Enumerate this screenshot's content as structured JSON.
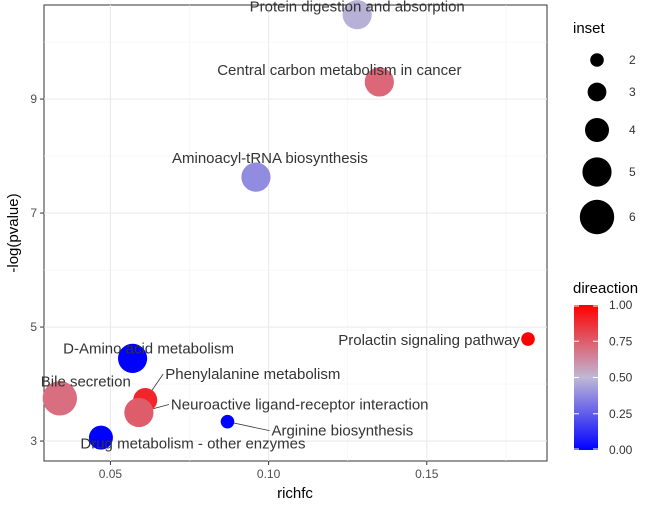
{
  "chart_data": {
    "type": "scatter",
    "title": "",
    "xlabel": "richfc",
    "ylabel": "-log(pvalue)",
    "xlim": [
      0.029,
      0.188
    ],
    "ylim": [
      2.65,
      10.65
    ],
    "xticks": [
      0.05,
      0.1,
      0.15
    ],
    "xtick_labels": [
      "0.05",
      "0.10",
      "0.15"
    ],
    "yticks": [
      3,
      5,
      7,
      9
    ],
    "ytick_labels": [
      "3",
      "5",
      "7",
      "9"
    ],
    "grid": true,
    "points": [
      {
        "label": "Protein digestion and absorption",
        "x": 0.128,
        "y": 10.48,
        "inset": 5,
        "direaction": 0.48
      },
      {
        "label": "Central carbon metabolism in cancer",
        "x": 0.135,
        "y": 9.3,
        "inset": 5,
        "direaction": 0.72
      },
      {
        "label": "Aminoacyl-tRNA biosynthesis",
        "x": 0.096,
        "y": 7.63,
        "inset": 5,
        "direaction": 0.38
      },
      {
        "label": "Prolactin signaling pathway",
        "x": 0.182,
        "y": 4.79,
        "inset": 2,
        "direaction": 1.0
      },
      {
        "label": "D-Amino acid metabolism",
        "x": 0.057,
        "y": 4.45,
        "inset": 5,
        "direaction": 0.0
      },
      {
        "label": "Phenylalanine metabolism",
        "x": 0.061,
        "y": 3.72,
        "inset": 4,
        "direaction": 0.9
      },
      {
        "label": "Bile secretion",
        "x": 0.034,
        "y": 3.75,
        "inset": 6,
        "direaction": 0.7
      },
      {
        "label": "Neuroactive ligand-receptor interaction",
        "x": 0.059,
        "y": 3.5,
        "inset": 5,
        "direaction": 0.75
      },
      {
        "label": "Arginine biosynthesis",
        "x": 0.087,
        "y": 3.34,
        "inset": 2,
        "direaction": 0.0
      },
      {
        "label": "Drug metabolism - other enzymes",
        "x": 0.047,
        "y": 3.06,
        "inset": 4,
        "direaction": 0.0
      }
    ],
    "legend_size": {
      "title": "inset",
      "values": [
        2,
        3,
        4,
        5,
        6
      ],
      "labels": [
        "2",
        "3",
        "4",
        "5",
        "6"
      ]
    },
    "legend_color": {
      "title": "direaction",
      "range": [
        0.0,
        1.0
      ],
      "ticks": [
        0.0,
        0.25,
        0.5,
        0.75,
        1.0
      ],
      "tick_labels": [
        "0.00",
        "0.25",
        "0.50",
        "0.75",
        "1.00"
      ],
      "low_color": "#0000FF",
      "mid_color": "#BFB8D6",
      "high_color": "#FF0000"
    }
  }
}
